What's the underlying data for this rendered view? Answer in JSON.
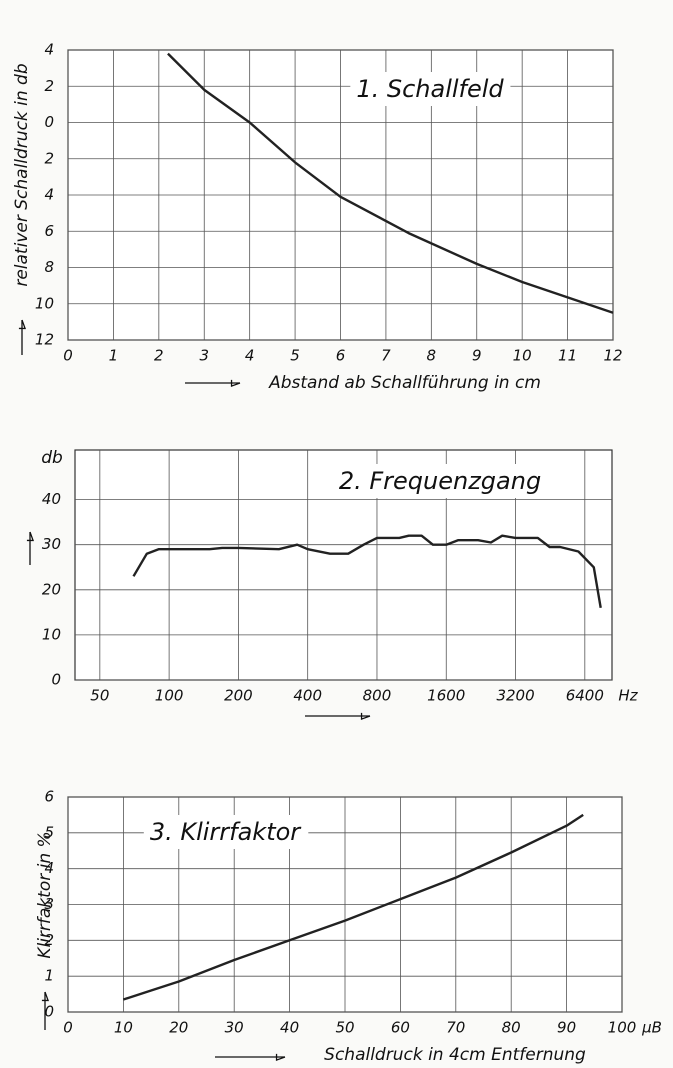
{
  "chart_data": [
    {
      "type": "line",
      "title": "1. Schallfeld",
      "xlabel": "Abstand ab Schallführung in cm",
      "ylabel": "relativer Schalldruck in db",
      "color": "#222222",
      "x": [
        2.2,
        3,
        4,
        5,
        6,
        7.5,
        9,
        10,
        12
      ],
      "values": [
        3.8,
        1.8,
        0,
        -2.2,
        -4.1,
        -6.1,
        -7.8,
        -8.8,
        -10.5
      ],
      "xlim": [
        0,
        12
      ],
      "xticks": [
        0,
        1,
        2,
        3,
        4,
        5,
        6,
        7,
        8,
        9,
        10,
        11,
        12
      ],
      "ylim": [
        -12,
        4
      ],
      "yticks": [
        4,
        2,
        0,
        {
          "value": -2,
          "label": "2"
        },
        {
          "value": -4,
          "label": "4"
        },
        {
          "value": -6,
          "label": "6"
        },
        {
          "value": -8,
          "label": "8"
        },
        {
          "value": -10,
          "label": "10"
        },
        {
          "value": -12,
          "label": "12"
        }
      ],
      "grid": true
    },
    {
      "type": "line",
      "title": "2. Frequenzgang",
      "ylabel": "db",
      "x_unit": "Hz",
      "xscale": "log",
      "color": "#222222",
      "x": [
        70,
        80,
        90,
        100,
        150,
        170,
        200,
        300,
        360,
        400,
        500,
        600,
        700,
        800,
        1000,
        1100,
        1250,
        1400,
        1600,
        1800,
        2200,
        2500,
        2800,
        3200,
        4000,
        4500,
        5000,
        6000,
        7000,
        7500
      ],
      "values": [
        23,
        28,
        29,
        29,
        29,
        29.3,
        29.3,
        29,
        30,
        29,
        28,
        28,
        30,
        31.5,
        31.5,
        32,
        32,
        30,
        30,
        31,
        31,
        30.5,
        32,
        31.5,
        31.5,
        29.5,
        29.5,
        28.5,
        25,
        16
      ],
      "xlim": [
        39,
        8400
      ],
      "xticks": [
        50,
        100,
        200,
        400,
        800,
        1600,
        3200,
        6400
      ],
      "ylim": [
        0,
        51
      ],
      "yticks": [
        0,
        10,
        20,
        30,
        40
      ],
      "grid": true
    },
    {
      "type": "line",
      "title": "3. Klirrfaktor",
      "xlabel": "Schalldruck in 4cm Entfernung",
      "ylabel": "Klirrfaktor in %",
      "x_unit": "µB",
      "color": "#222222",
      "x": [
        10,
        15,
        20,
        30,
        40,
        50,
        60,
        70,
        80,
        90,
        93
      ],
      "values": [
        0.35,
        0.6,
        0.85,
        1.45,
        2.0,
        2.55,
        3.15,
        3.75,
        4.45,
        5.2,
        5.5
      ],
      "xlim": [
        0,
        100
      ],
      "xticks": [
        0,
        10,
        20,
        30,
        40,
        50,
        60,
        70,
        80,
        90,
        100
      ],
      "ylim": [
        0,
        6
      ],
      "yticks": [
        0,
        1,
        2,
        3,
        4,
        5,
        6
      ],
      "grid": true
    }
  ]
}
